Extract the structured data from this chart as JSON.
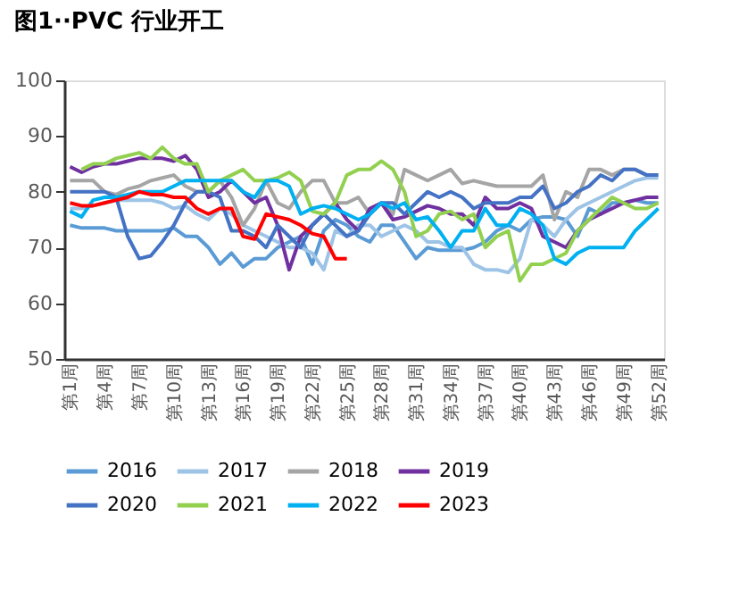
{
  "chart_data": {
    "type": "line",
    "title": "图1··PVC 行业开工",
    "categories": [
      "第1周",
      null,
      null,
      "第4周",
      null,
      null,
      "第7周",
      null,
      null,
      "第10周",
      null,
      null,
      "第13周",
      null,
      null,
      "第16周",
      null,
      null,
      "第19周",
      null,
      null,
      "第22周",
      null,
      null,
      "第25周",
      null,
      null,
      "第28周",
      null,
      null,
      "第31周",
      null,
      null,
      "第34周",
      null,
      null,
      "第37周",
      null,
      null,
      "第40周",
      null,
      null,
      "第43周",
      null,
      null,
      "第46周",
      null,
      null,
      "第49周",
      null,
      null,
      "第52周"
    ],
    "series": [
      {
        "name": "2016",
        "color": "#5b9bd5",
        "values": [
          74,
          73.5,
          73.5,
          73.5,
          73,
          73,
          73,
          73,
          73,
          73.5,
          72,
          72,
          70,
          67,
          69,
          66.5,
          68,
          68,
          70,
          71,
          72,
          67,
          73,
          75,
          74,
          72,
          71,
          74,
          74,
          71,
          68,
          70,
          69.5,
          69.5,
          69.5,
          70,
          71,
          73,
          74,
          73,
          75,
          75.5,
          75.5,
          75,
          72,
          77,
          76,
          78,
          78,
          78.5,
          78,
          78
        ]
      },
      {
        "name": "2017",
        "color": "#9dc3e6",
        "values": [
          77,
          77,
          77.5,
          78,
          78.5,
          78.5,
          78.5,
          78.5,
          78,
          77,
          77.5,
          76,
          75,
          77,
          76,
          74,
          73,
          72,
          71,
          70,
          70,
          69,
          66,
          73,
          72,
          74,
          74,
          72,
          73,
          74,
          73,
          71,
          71,
          70,
          70,
          67,
          66,
          66,
          65.5,
          68,
          75,
          74,
          72,
          75,
          77,
          78,
          79,
          80,
          81,
          82,
          82.5,
          82.5
        ]
      },
      {
        "name": "2018",
        "color": "#a5a5a5",
        "values": [
          82,
          82,
          82,
          80,
          79.5,
          80.5,
          81,
          82,
          82.5,
          83,
          81,
          80,
          80,
          82,
          79,
          74,
          77,
          82,
          78,
          77,
          80,
          82,
          82,
          78,
          78,
          79,
          76,
          78,
          76,
          84,
          83,
          82,
          83,
          84,
          81.5,
          82,
          81.5,
          81,
          81,
          81,
          81,
          83,
          75,
          80,
          79,
          84,
          84,
          83,
          84,
          84,
          83,
          83
        ]
      },
      {
        "name": "2019",
        "color": "#7030a0",
        "values": [
          84.5,
          83.5,
          84.5,
          85,
          85,
          85.5,
          86,
          86,
          86,
          85.5,
          86.5,
          84,
          79,
          80,
          82,
          80,
          78,
          79,
          74,
          66,
          72,
          74,
          76,
          78,
          75,
          73,
          77,
          78,
          75,
          75.5,
          76.5,
          77.5,
          77,
          76,
          76,
          74,
          79,
          77,
          77,
          78,
          77,
          72,
          71,
          70,
          73,
          75,
          76,
          77,
          78,
          78.5,
          79,
          79
        ]
      },
      {
        "name": "2020",
        "color": "#4472c4",
        "values": [
          80,
          80,
          80,
          80,
          79,
          72,
          68,
          68.5,
          71,
          74,
          78,
          80,
          80,
          79,
          73,
          73,
          72,
          70,
          74,
          72,
          70,
          74,
          76,
          74,
          72,
          73,
          76,
          78,
          78,
          76,
          78,
          80,
          79,
          80,
          79,
          77,
          78,
          78,
          78,
          79,
          79,
          81,
          77,
          78,
          80,
          81,
          83,
          82,
          84,
          84,
          83,
          83
        ]
      },
      {
        "name": "2021",
        "color": "#92d050",
        "values": [
          null,
          84,
          85,
          85,
          86,
          86.5,
          87,
          86,
          88,
          86,
          85,
          85,
          80,
          82,
          83,
          84,
          82,
          82,
          82.5,
          83.5,
          82,
          76.5,
          76,
          78,
          83,
          84,
          84,
          85.5,
          84,
          80,
          72,
          73,
          76,
          76.5,
          75,
          76,
          70,
          72,
          73,
          64,
          67,
          67,
          68,
          69,
          73,
          75,
          77,
          79,
          78,
          77,
          77,
          78
        ]
      },
      {
        "name": "2022",
        "color": "#00b0f0",
        "values": [
          76.5,
          75.5,
          78.5,
          79,
          79,
          79.5,
          80,
          80,
          80,
          81,
          82,
          82,
          82,
          82,
          82,
          80,
          79,
          82,
          82,
          81,
          76,
          77,
          77.5,
          77,
          76,
          75,
          76,
          78,
          77,
          78,
          75,
          75.5,
          73,
          70,
          73,
          73,
          77,
          74,
          74,
          77,
          76,
          74,
          68,
          67,
          69,
          70,
          70,
          70,
          70,
          73,
          75,
          77
        ]
      },
      {
        "name": "2023",
        "color": "#ff0000",
        "values": [
          78,
          77.5,
          77.5,
          78,
          78.5,
          79,
          80,
          79.5,
          79.5,
          79,
          79,
          77,
          76,
          77,
          77,
          72,
          71.5,
          76,
          75.5,
          75,
          74,
          72.5,
          72,
          68,
          68,
          null,
          null,
          null,
          null,
          null,
          null,
          null,
          null,
          null,
          null,
          null,
          null,
          null,
          null,
          null,
          null,
          null,
          null,
          null,
          null,
          null,
          null,
          null,
          null,
          null,
          null,
          null
        ]
      }
    ],
    "ylim": [
      50,
      100
    ],
    "yticks": [
      50,
      60,
      70,
      80,
      90,
      100
    ],
    "legend": "bottom"
  }
}
